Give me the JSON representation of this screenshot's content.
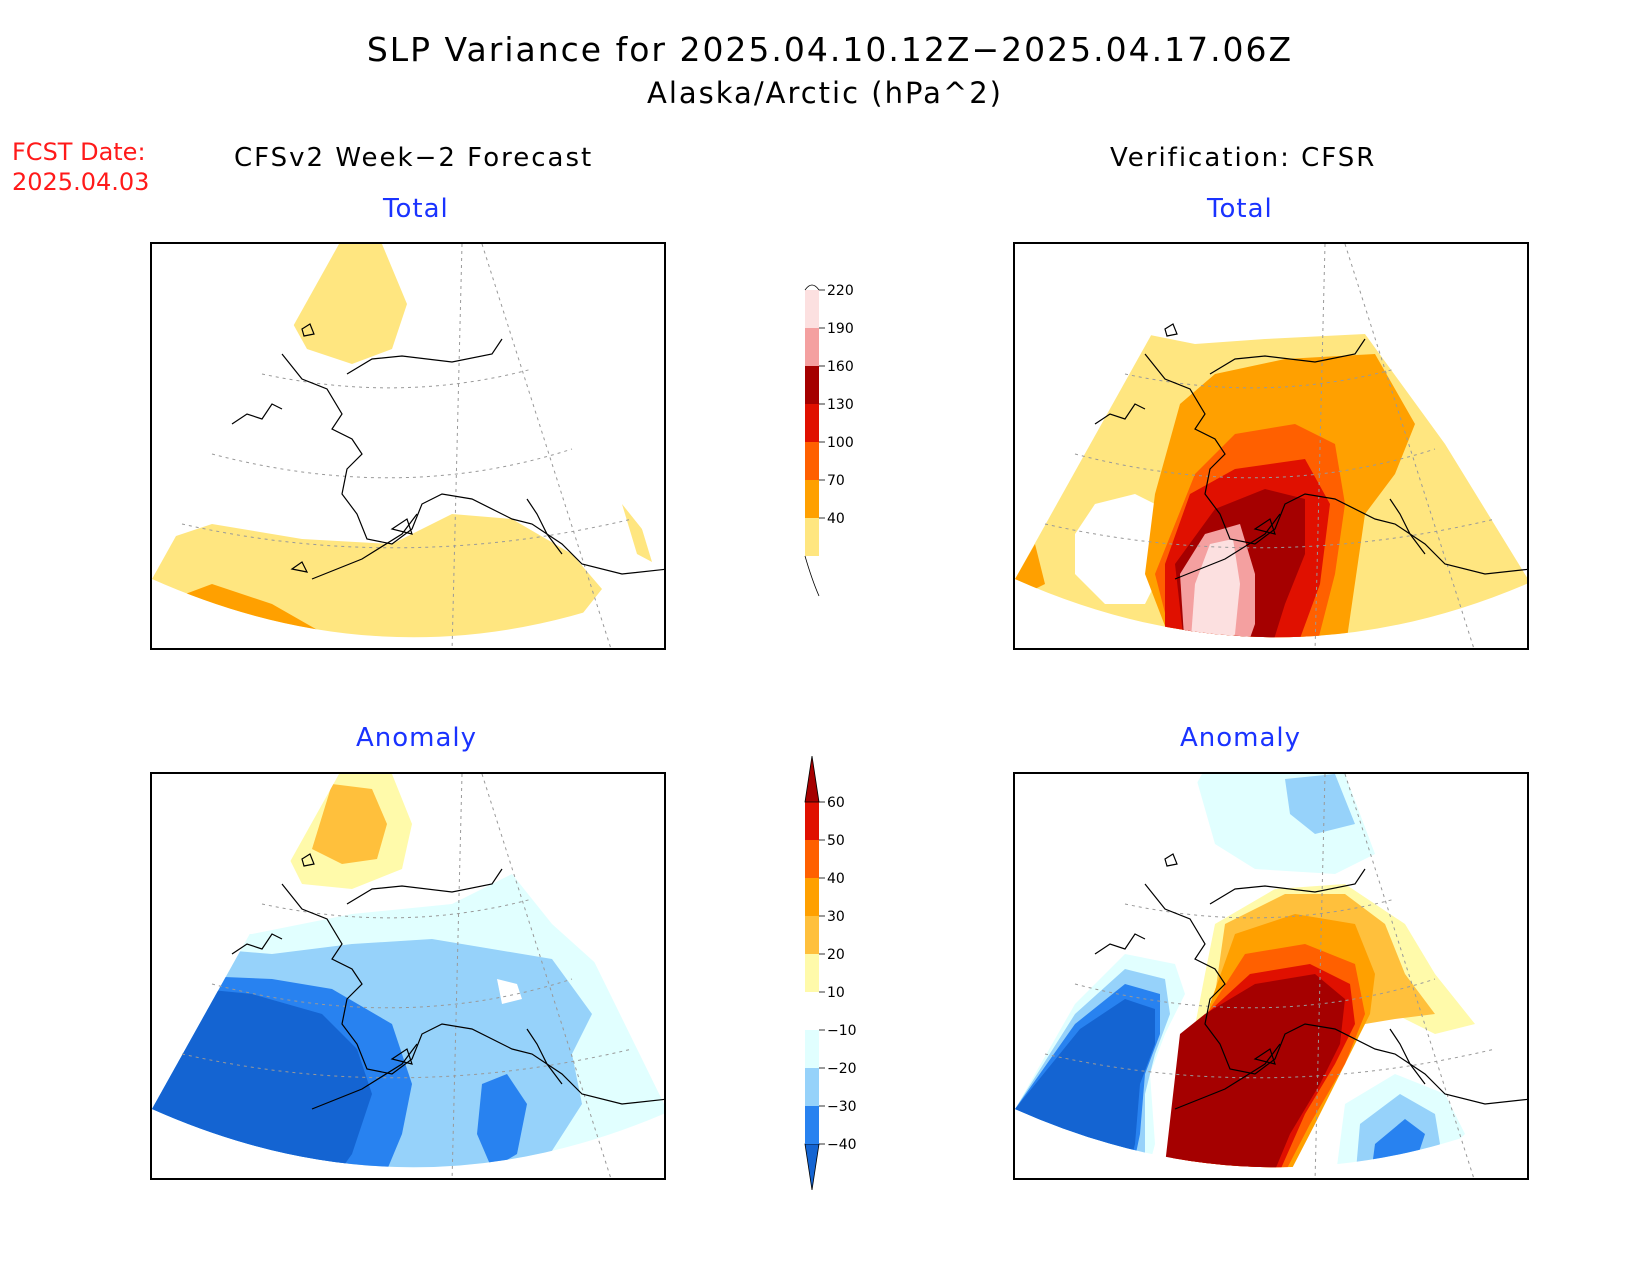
{
  "title": "SLP Variance for 2025.04.10.12Z−2025.04.17.06Z",
  "subtitle": "Alaska/Arctic (hPa^2)",
  "fcst_date_label": "FCST Date:",
  "fcst_date_value": "2025.04.03",
  "left_header": "CFSv2 Week−2 Forecast",
  "right_header": "Verification: CFSR",
  "panels": {
    "forecast_total": "Total",
    "verification_total": "Total",
    "forecast_anomaly": "Anomaly",
    "verification_anomaly": "Anomaly"
  },
  "colorbar_total": {
    "labels": [
      "40",
      "70",
      "100",
      "130",
      "160",
      "190",
      "220"
    ],
    "colors": [
      "#ffe680",
      "#ffa000",
      "#ff6000",
      "#e01000",
      "#a50000",
      "#f4a0a0",
      "#fce0e0"
    ]
  },
  "colorbar_anomaly": {
    "labels": [
      "−40",
      "−30",
      "−20",
      "−10",
      "10",
      "20",
      "30",
      "40",
      "50",
      "60"
    ],
    "colors": [
      "#1464d2",
      "#2882f0",
      "#96d2fa",
      "#e1ffff",
      "#ffffff",
      "#fffaaa",
      "#ffc03c",
      "#ffa000",
      "#ff6000",
      "#e01000",
      "#a50000"
    ]
  }
}
